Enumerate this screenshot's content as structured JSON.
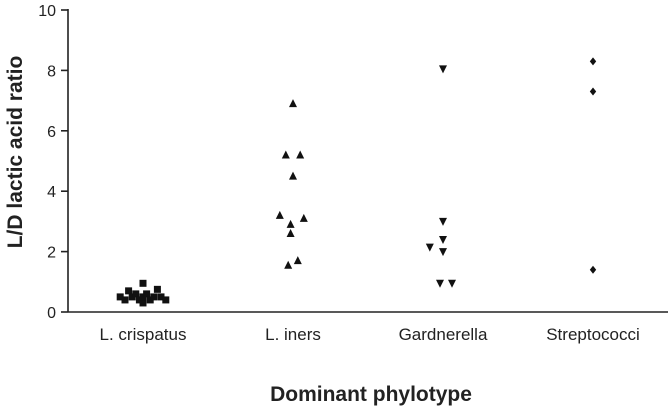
{
  "chart_data": {
    "type": "scatter",
    "title": "",
    "xlabel": "Dominant phylotype",
    "ylabel": "L/D lactic acid ratio",
    "ylim": [
      0,
      10
    ],
    "yticks": [
      "0",
      "2",
      "4",
      "6",
      "8",
      "10"
    ],
    "grid": false,
    "legend": "none",
    "categories": [
      "L. crispatus",
      "L. iners",
      "Gardnerella",
      "Streptococci"
    ],
    "series": [
      {
        "category": "L. crispatus",
        "marker": "square",
        "points": [
          {
            "offset": -0.38,
            "y": 0.5
          },
          {
            "offset": -0.3,
            "y": 0.4
          },
          {
            "offset": -0.24,
            "y": 0.7
          },
          {
            "offset": -0.18,
            "y": 0.5
          },
          {
            "offset": -0.12,
            "y": 0.6
          },
          {
            "offset": -0.06,
            "y": 0.4
          },
          {
            "offset": 0.0,
            "y": 0.3
          },
          {
            "offset": 0.0,
            "y": 0.5
          },
          {
            "offset": 0.0,
            "y": 0.95
          },
          {
            "offset": 0.06,
            "y": 0.6
          },
          {
            "offset": 0.12,
            "y": 0.4
          },
          {
            "offset": 0.18,
            "y": 0.5
          },
          {
            "offset": 0.24,
            "y": 0.75
          },
          {
            "offset": 0.3,
            "y": 0.5
          },
          {
            "offset": 0.38,
            "y": 0.4
          }
        ]
      },
      {
        "category": "L. iners",
        "marker": "triangle-up",
        "points": [
          {
            "offset": 0.0,
            "y": 6.9
          },
          {
            "offset": -0.12,
            "y": 5.2
          },
          {
            "offset": 0.12,
            "y": 5.2
          },
          {
            "offset": 0.0,
            "y": 4.5
          },
          {
            "offset": -0.22,
            "y": 3.2
          },
          {
            "offset": 0.18,
            "y": 3.1
          },
          {
            "offset": -0.04,
            "y": 2.9
          },
          {
            "offset": -0.04,
            "y": 2.6
          },
          {
            "offset": 0.08,
            "y": 1.7
          },
          {
            "offset": -0.08,
            "y": 1.55
          }
        ]
      },
      {
        "category": "Gardnerella",
        "marker": "triangle-down",
        "points": [
          {
            "offset": 0.0,
            "y": 8.05
          },
          {
            "offset": 0.0,
            "y": 3.0
          },
          {
            "offset": 0.0,
            "y": 2.4
          },
          {
            "offset": -0.22,
            "y": 2.15
          },
          {
            "offset": 0.0,
            "y": 2.0
          },
          {
            "offset": -0.05,
            "y": 0.95
          },
          {
            "offset": 0.15,
            "y": 0.95
          }
        ]
      },
      {
        "category": "Streptococci",
        "marker": "diamond",
        "points": [
          {
            "offset": 0.0,
            "y": 8.3
          },
          {
            "offset": 0.0,
            "y": 7.3
          },
          {
            "offset": 0.0,
            "y": 1.4
          }
        ]
      }
    ]
  }
}
